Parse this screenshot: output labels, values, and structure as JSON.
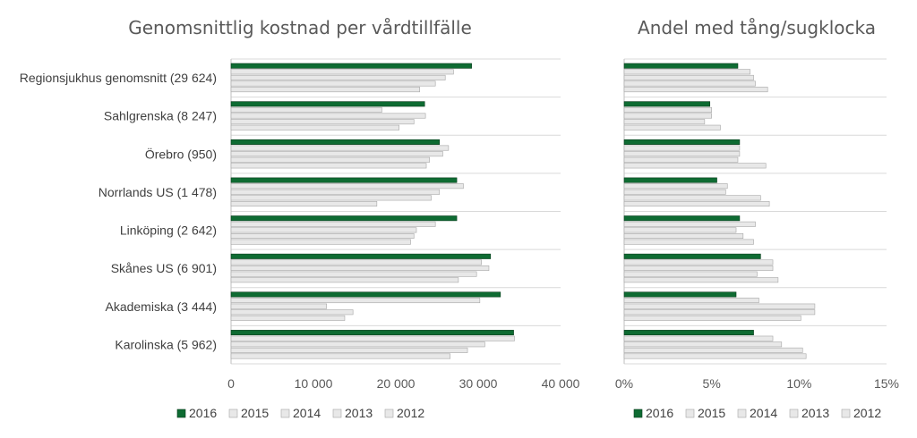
{
  "colors": {
    "y2016": "#0e6b32",
    "other": "#e8e8e8",
    "other_stroke": "#a6a6a6",
    "dark_stroke": "#0a3d1d",
    "grid": "#d9d9d9",
    "axis": "#bfbfbf"
  },
  "chart_data": [
    {
      "type": "bar",
      "orientation": "horizontal",
      "title": "Genomsnittlig kostnad per vårdtillfälle",
      "categories": [
        "Regionsjukhus genomsnitt (29 624)",
        "Sahlgrenska (8 247)",
        "Örebro (950)",
        "Norrlands US (1 478)",
        "Linköping (2 642)",
        "Skånes US (6 901)",
        "Akademiska (3 444)",
        "Karolinska (5 962)"
      ],
      "xlim": [
        0,
        40000
      ],
      "ticks": [
        "0",
        "10 000",
        "20 000",
        "30 000",
        "40 000"
      ],
      "tick_values": [
        0,
        10000,
        20000,
        30000,
        40000
      ],
      "grid": true,
      "legend_position": "bottom",
      "series": [
        {
          "name": "2016",
          "values": [
            29200,
            23500,
            25300,
            27400,
            27400,
            31500,
            32700,
            34300
          ]
        },
        {
          "name": "2015",
          "values": [
            27000,
            18300,
            26400,
            28200,
            24800,
            30400,
            30200,
            34400
          ]
        },
        {
          "name": "2014",
          "values": [
            26000,
            23600,
            25700,
            25300,
            22500,
            31300,
            11600,
            30800
          ]
        },
        {
          "name": "2013",
          "values": [
            24800,
            22200,
            24100,
            24300,
            22200,
            29800,
            14800,
            28700
          ]
        },
        {
          "name": "2012",
          "values": [
            22900,
            20400,
            23700,
            17700,
            21800,
            27600,
            13800,
            26600
          ]
        }
      ]
    },
    {
      "type": "bar",
      "orientation": "horizontal",
      "title": "Andel med tång/sugklocka",
      "categories": [
        "Regionsjukhus genomsnitt (29 624)",
        "Sahlgrenska (8 247)",
        "Örebro (950)",
        "Norrlands US (1 478)",
        "Linköping (2 642)",
        "Skånes US (6 901)",
        "Akademiska (3 444)",
        "Karolinska (5 962)"
      ],
      "xlim": [
        0,
        0.15
      ],
      "ticks": [
        "0%",
        "5%",
        "10%",
        "15%"
      ],
      "tick_values": [
        0,
        0.05,
        0.1,
        0.15
      ],
      "grid": true,
      "legend_position": "bottom",
      "series": [
        {
          "name": "2016",
          "values": [
            0.065,
            0.049,
            0.066,
            0.053,
            0.066,
            0.078,
            0.064,
            0.074
          ]
        },
        {
          "name": "2015",
          "values": [
            0.072,
            0.05,
            0.066,
            0.059,
            0.075,
            0.085,
            0.077,
            0.085
          ]
        },
        {
          "name": "2014",
          "values": [
            0.074,
            0.05,
            0.066,
            0.058,
            0.064,
            0.085,
            0.109,
            0.09
          ]
        },
        {
          "name": "2013",
          "values": [
            0.075,
            0.046,
            0.065,
            0.078,
            0.068,
            0.076,
            0.109,
            0.102
          ]
        },
        {
          "name": "2012",
          "values": [
            0.082,
            0.055,
            0.081,
            0.083,
            0.074,
            0.088,
            0.101,
            0.104
          ]
        }
      ]
    }
  ]
}
